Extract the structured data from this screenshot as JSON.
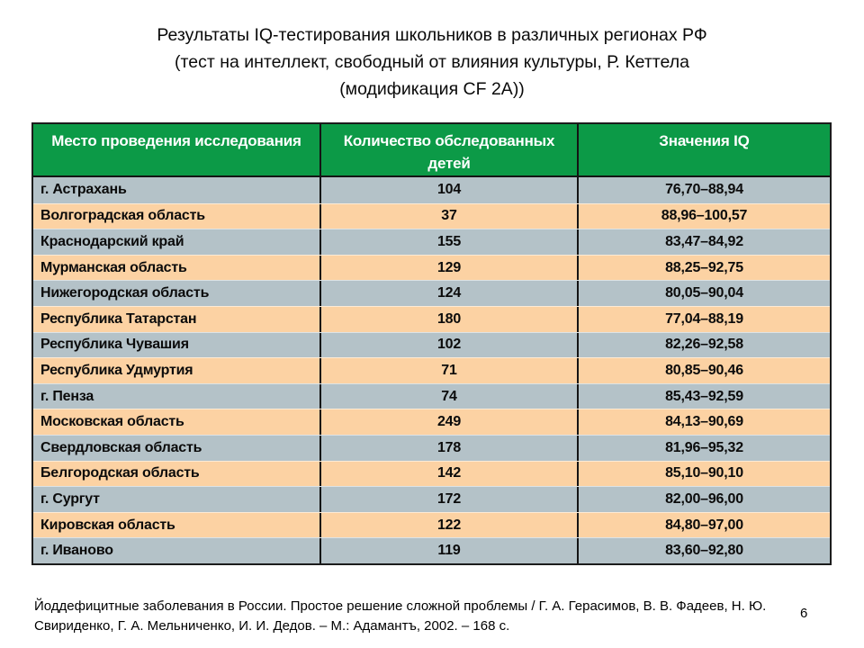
{
  "title": {
    "lines": [
      "Результаты IQ-тестирования школьников в различных регионах РФ",
      "(тест на интеллект, свободный от влияния культуры, Р. Кеттела",
      "(модификация CF 2А))"
    ]
  },
  "table": {
    "columns": [
      "Место проведения исследования",
      "Количество обследованных детей",
      "Значения IQ"
    ],
    "rows": [
      {
        "region": "г. Астрахань",
        "count": "104",
        "iq": "76,70–88,94"
      },
      {
        "region": "Волгоградская область",
        "count": "37",
        "iq": "88,96–100,57"
      },
      {
        "region": "Краснодарский край",
        "count": "155",
        "iq": "83,47–84,92"
      },
      {
        "region": "Мурманская область",
        "count": "129",
        "iq": "88,25–92,75"
      },
      {
        "region": "Нижегородская область",
        "count": "124",
        "iq": "80,05–90,04"
      },
      {
        "region": "Республика Татарстан",
        "count": "180",
        "iq": "77,04–88,19"
      },
      {
        "region": "Республика Чувашия",
        "count": "102",
        "iq": "82,26–92,58"
      },
      {
        "region": "Республика Удмуртия",
        "count": "71",
        "iq": "80,85–90,46"
      },
      {
        "region": "г. Пенза",
        "count": "74",
        "iq": "85,43–92,59"
      },
      {
        "region": "Московская область",
        "count": "249",
        "iq": "84,13–90,69"
      },
      {
        "region": "Свердловская область",
        "count": "178",
        "iq": "81,96–95,32"
      },
      {
        "region": "Белгородская область",
        "count": "142",
        "iq": "85,10–90,10"
      },
      {
        "region": "г. Сургут",
        "count": "172",
        "iq": "82,00–96,00"
      },
      {
        "region": "Кировская область",
        "count": "122",
        "iq": "84,80–97,00"
      },
      {
        "region": "г. Иваново",
        "count": "119",
        "iq": "83,60–92,80"
      }
    ]
  },
  "footer": {
    "citation_lines": [
      "Йоддефицитные заболевания в России. Простое решение сложной проблемы / Г. А. Герасимов, В. В. Фадеев, Н. Ю.",
      "Свириденко, Г. А. Мельниченко, И. И. Дедов. – М.: Адамантъ, 2002. – 168 с."
    ]
  },
  "page_number": "6",
  "colors": {
    "header_green": "#0c9a47",
    "header_text": "#ffffff",
    "row_gray": "#b4c2c8",
    "row_peach": "#fcd2a3",
    "table_border": "#1c1c1c",
    "body_text": "#0b0b0b"
  }
}
